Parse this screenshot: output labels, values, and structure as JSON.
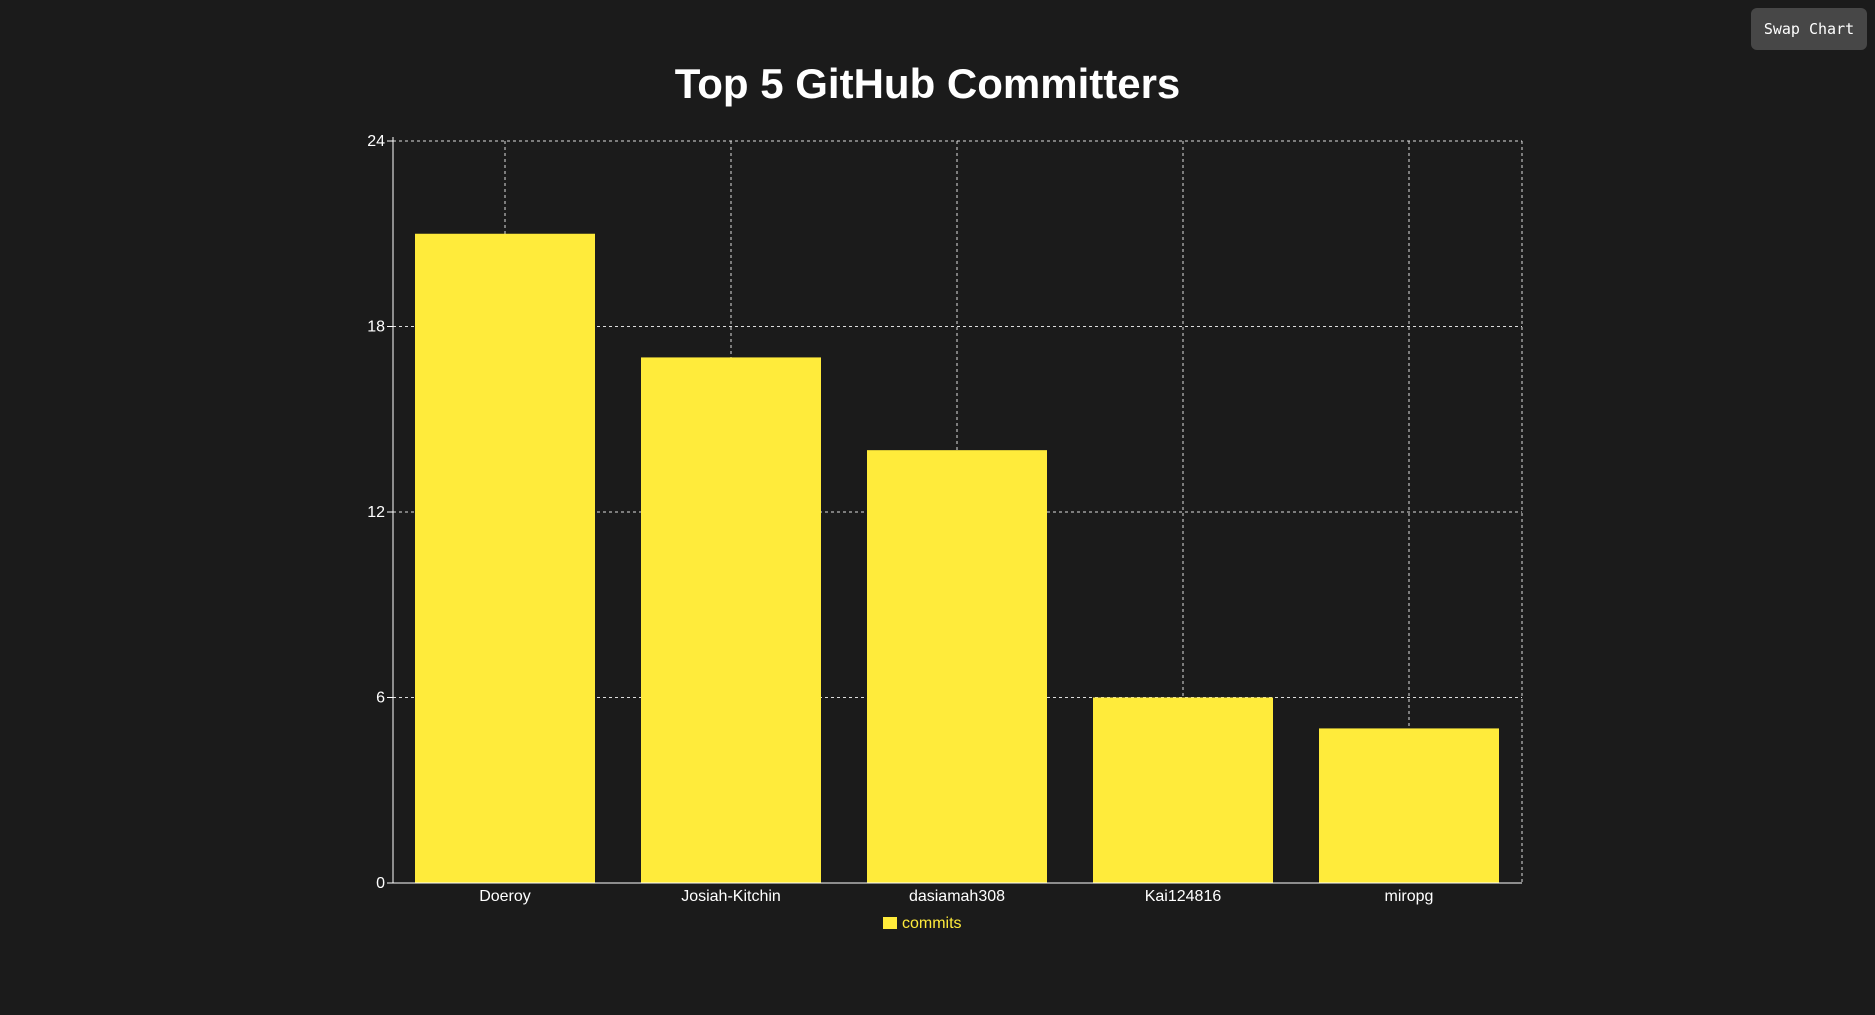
{
  "toolbar": {
    "swap_label": "Swap Chart"
  },
  "colors": {
    "background": "#1b1b1b",
    "bar": "#ffeb3b",
    "grid": "#ffffff",
    "button": "#474747"
  },
  "chart_data": {
    "type": "bar",
    "title": "Top 5 GitHub Committers",
    "xlabel": "",
    "ylabel": "",
    "categories": [
      "Doeroy",
      "Josiah-Kitchin",
      "dasiamah308",
      "Kai124816",
      "miropg"
    ],
    "series": [
      {
        "name": "commits",
        "values": [
          21,
          17,
          14,
          6,
          5
        ],
        "color": "#ffeb3b"
      }
    ],
    "ylim": [
      0,
      24
    ],
    "yticks": [
      0,
      6,
      12,
      18,
      24
    ],
    "grid": true,
    "legend": "bottom"
  }
}
